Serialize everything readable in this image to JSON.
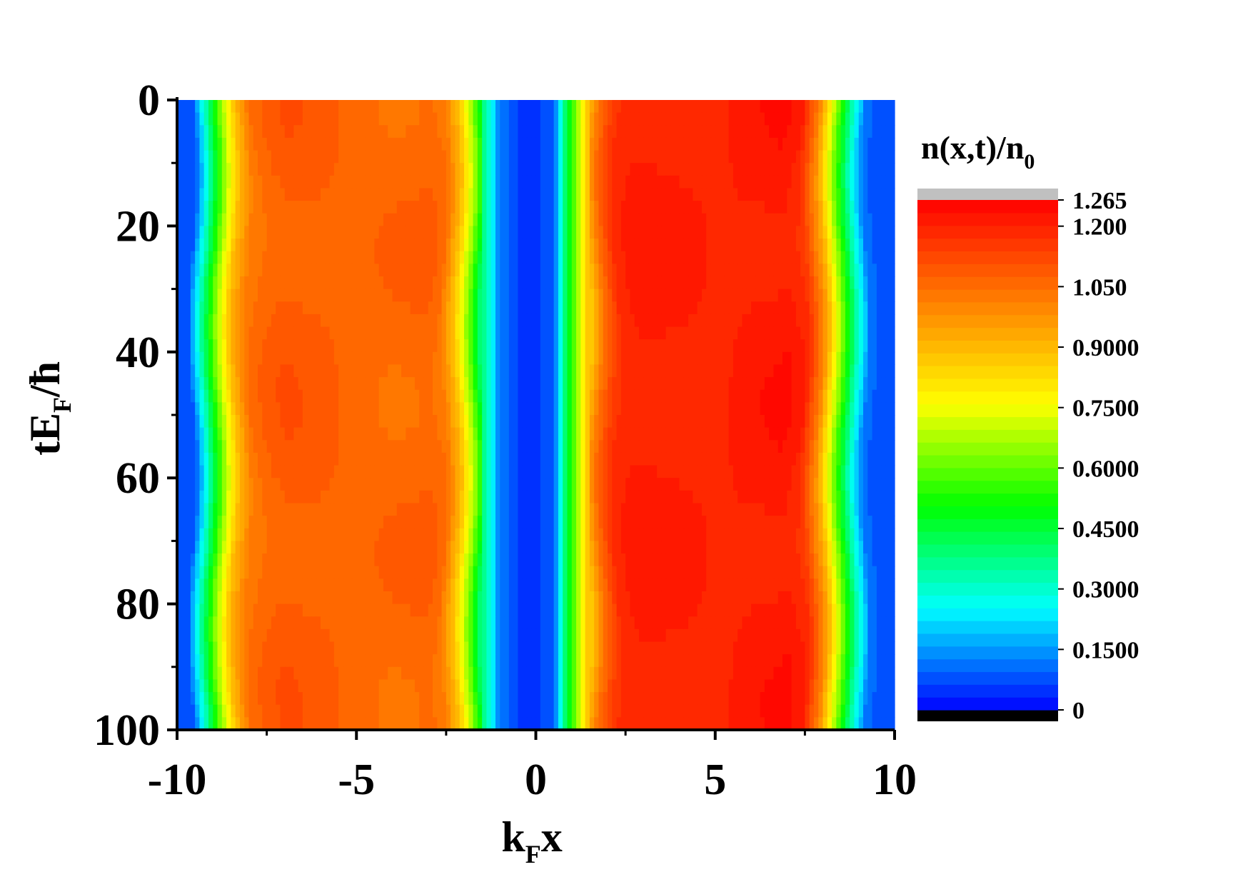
{
  "chart_data": {
    "type": "heatmap",
    "title": "",
    "xlabel": {
      "main": "k",
      "sub": "F",
      "tail": "x"
    },
    "ylabel": {
      "main": "tE",
      "sub": "F",
      "tail": "/ħ"
    },
    "xlim": [
      -10,
      10
    ],
    "ylim": [
      0,
      100
    ],
    "y_inverted": true,
    "x_ticks": [
      -10,
      -5,
      0,
      5,
      10
    ],
    "x_tick_labels": [
      "-10",
      "-5",
      "0",
      "5",
      "10"
    ],
    "y_ticks": [
      0,
      20,
      40,
      60,
      80,
      100
    ],
    "y_tick_labels": [
      "0",
      "20",
      "40",
      "60",
      "80",
      "100"
    ],
    "colorbar": {
      "title": {
        "main": "n(x,t)/n",
        "sub": "0"
      },
      "min": 0,
      "max": 1.265,
      "levels": 40,
      "over_color": "#c0c0c0",
      "under_color": "#000000",
      "colormap": [
        "#0000ff",
        "#0080ff",
        "#00ffff",
        "#00ff80",
        "#00ff00",
        "#80ff00",
        "#ffff00",
        "#ffc000",
        "#ff8000",
        "#ff4000",
        "#ff0000"
      ],
      "tick_values": [
        1.265,
        1.2,
        1.05,
        0.9,
        0.75,
        0.6,
        0.45,
        0.3,
        0.15,
        0
      ],
      "tick_labels": [
        "1.265",
        "1.200",
        "1.050",
        "0.9000",
        "0.7500",
        "0.6000",
        "0.4500",
        "0.3000",
        "0.1500",
        "0"
      ]
    },
    "density_profile": {
      "x": [
        -10,
        -9.6,
        -9.2,
        -8.8,
        -8.4,
        -8.0,
        -7.5,
        -7.0,
        -6.0,
        -5.0,
        -4.0,
        -3.0,
        -2.6,
        -2.2,
        -1.8,
        -1.4,
        -1.0,
        -0.5,
        0,
        0.5,
        1.0,
        1.4,
        1.8,
        2.2,
        2.6,
        3.0,
        4.0,
        5.0,
        6.0,
        7.0,
        7.5,
        8.0,
        8.4,
        8.8,
        9.2,
        9.6,
        10
      ],
      "n": [
        0.07,
        0.07,
        0.35,
        0.65,
        0.9,
        1.03,
        1.07,
        1.09,
        1.08,
        1.06,
        1.06,
        1.07,
        1.05,
        0.9,
        0.65,
        0.35,
        0.12,
        0.06,
        0.05,
        0.1,
        0.55,
        0.85,
        1.05,
        1.17,
        1.2,
        1.21,
        1.2,
        1.19,
        1.21,
        1.22,
        1.18,
        0.95,
        0.65,
        0.35,
        0.12,
        0.07,
        0.07
      ]
    }
  }
}
